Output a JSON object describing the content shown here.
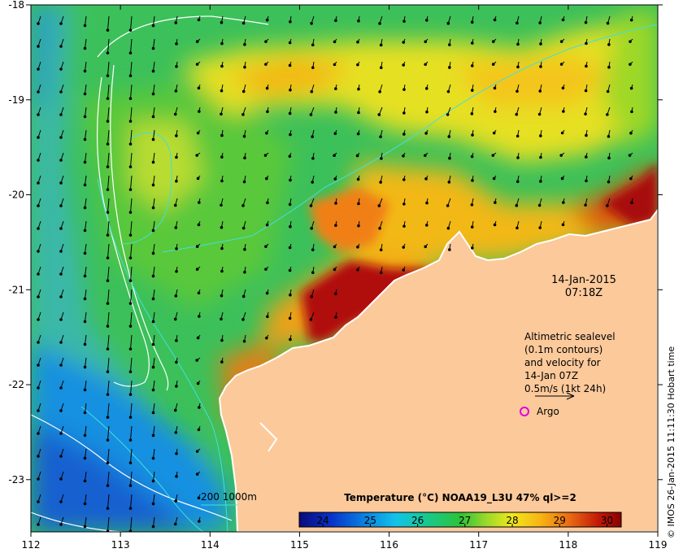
{
  "chart_data": {
    "type": "heatmap",
    "title": "Temperature (°C) NOAA19_L3U 47% ql>=2",
    "x_ticks": [
      "112",
      "113",
      "114",
      "115",
      "116",
      "117",
      "118",
      "119"
    ],
    "y_ticks": [
      "-18",
      "-19",
      "-20",
      "-21",
      "-22",
      "-23"
    ],
    "xlim": [
      112,
      119
    ],
    "ylim": [
      -23.55,
      -18
    ],
    "colorbar": {
      "ticks": [
        "24",
        "25",
        "26",
        "27",
        "28",
        "29",
        "30"
      ],
      "range": [
        23.5,
        30.3
      ],
      "colors": [
        "#0a0a7a",
        "#0733c8",
        "#0a7fe0",
        "#12c3ea",
        "#18c98a",
        "#2cc23a",
        "#9ad82a",
        "#f0e81c",
        "#f7b414",
        "#ea6a14",
        "#c21808",
        "#8a0000"
      ]
    },
    "date_label": "14-Jan-2015",
    "time_label": "07:18Z",
    "legend_lines": [
      "Altimetric sealevel",
      "(0.1m contours)",
      "and velocity for",
      "14-Jan 07Z",
      "0.5m/s (1kt 24h)"
    ],
    "argo_label": "Argo",
    "isobath_label": "200  1000m",
    "credit": "© IMOS 26-Jan-2015 11:11:30 Hobart time",
    "colors": {
      "land": "#fcc99b",
      "isobath": "#40e0e0",
      "argo": "#e000e0",
      "ssh_contour": "#ffffff"
    }
  }
}
